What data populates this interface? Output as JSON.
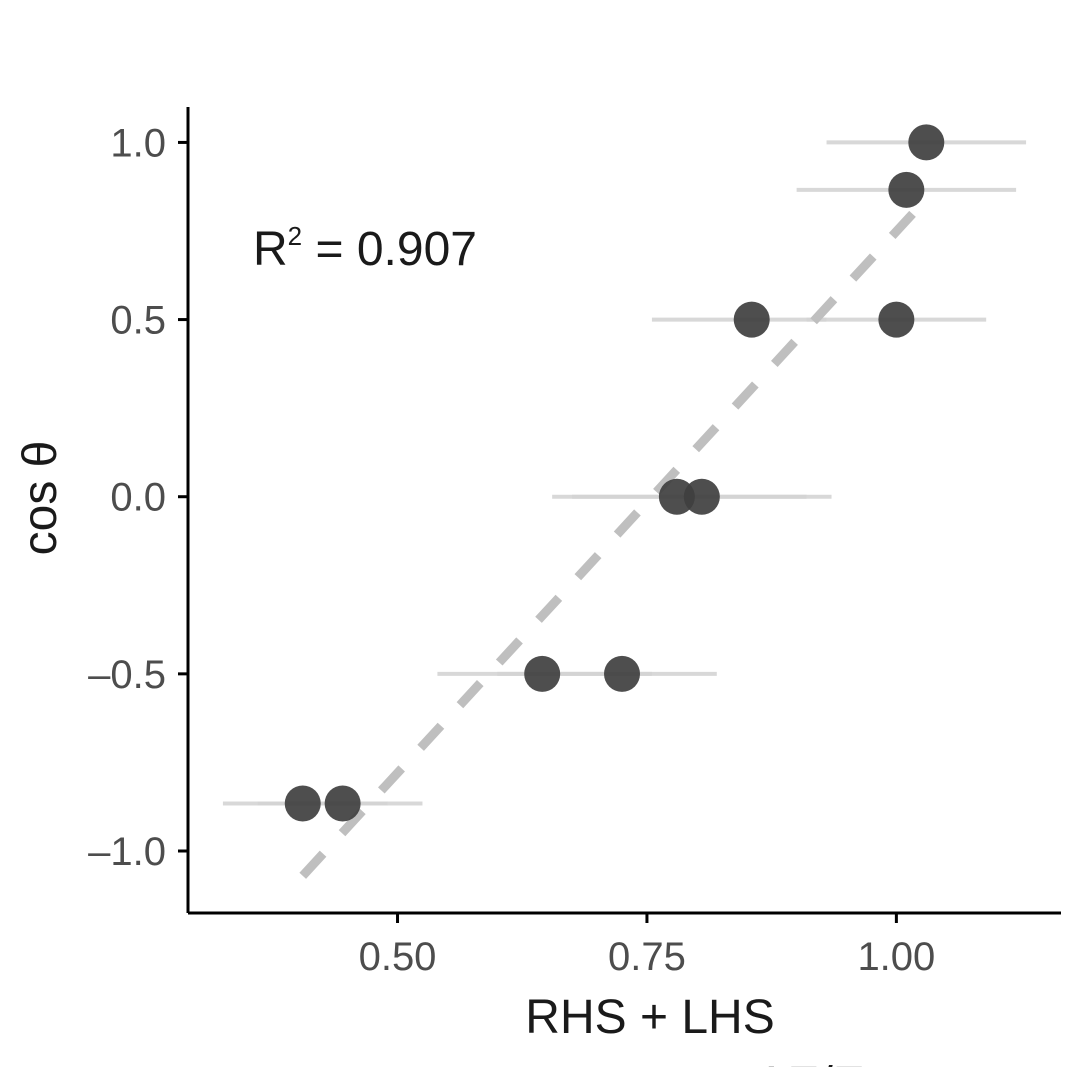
{
  "chart_data": {
    "type": "scatter",
    "title": "",
    "xlabel": "RHS + LHS",
    "xlabel_partial": "ΔE/E",
    "ylabel": "cos θ",
    "xlim": [
      0.29,
      1.165
    ],
    "ylim": [
      -1.175,
      1.1
    ],
    "x_ticks": [
      0.5,
      0.75,
      1.0
    ],
    "x_tick_labels": [
      "0.50",
      "0.75",
      "1.00"
    ],
    "y_ticks": [
      -1.0,
      -0.5,
      0.0,
      0.5,
      1.0
    ],
    "y_tick_labels": [
      "–1.0",
      "–0.5",
      "0.0",
      "0.5",
      "1.0"
    ],
    "grid": false,
    "annotation": {
      "base": "R",
      "sup": "2",
      "rest": " = 0.907"
    },
    "points": [
      {
        "x": 1.03,
        "y": 1.0,
        "xmin": 0.93,
        "xmax": 1.13
      },
      {
        "x": 1.01,
        "y": 0.866,
        "xmin": 0.9,
        "xmax": 1.12
      },
      {
        "x": 0.855,
        "y": 0.5,
        "xmin": 0.755,
        "xmax": 0.93
      },
      {
        "x": 1.0,
        "y": 0.5,
        "xmin": 0.91,
        "xmax": 1.09
      },
      {
        "x": 0.78,
        "y": 0.0,
        "xmin": 0.655,
        "xmax": 0.91
      },
      {
        "x": 0.805,
        "y": 0.0,
        "xmin": 0.675,
        "xmax": 0.935
      },
      {
        "x": 0.645,
        "y": -0.5,
        "xmin": 0.54,
        "xmax": 0.755
      },
      {
        "x": 0.725,
        "y": -0.5,
        "xmin": 0.6,
        "xmax": 0.82
      },
      {
        "x": 0.405,
        "y": -0.866,
        "xmin": 0.325,
        "xmax": 0.49
      },
      {
        "x": 0.445,
        "y": -0.866,
        "xmin": 0.36,
        "xmax": 0.525
      }
    ],
    "fit_line": {
      "x_start": 0.405,
      "y_start": -1.07,
      "x_end": 1.02,
      "y_end": 0.81
    },
    "colors": {
      "point": "#3f3f3f",
      "errorbar": "#d4d4d4",
      "fit": "#bfbfbf",
      "axis": "#000000"
    }
  }
}
